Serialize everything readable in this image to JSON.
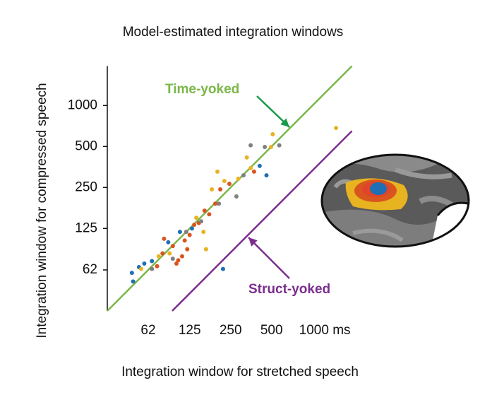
{
  "chart_data": {
    "type": "scatter",
    "title": "Model-estimated integration windows",
    "x_label": "Integration window for stretched speech",
    "y_label": "Integration window for compressed speech",
    "log_scale": true,
    "xlim": [
      31,
      1950
    ],
    "ylim": [
      31,
      1950
    ],
    "xticks": [
      62,
      125,
      250,
      500,
      {
        "value": 1000,
        "label": "1000 ms"
      }
    ],
    "yticks": [
      62,
      125,
      250,
      500,
      1000
    ],
    "series": [
      {
        "color": "#1f6fb5",
        "x": [
          47,
          48,
          53,
          58,
          66,
          87,
          106,
          130,
          220,
          409,
          459
        ],
        "values": [
          59,
          51,
          65,
          69,
          72,
          99,
          118,
          125,
          63,
          360,
          307
        ]
      },
      {
        "color": "#d9541e",
        "x": [
          79,
          81,
          94,
          100,
          110,
          115,
          125,
          135,
          146,
          161,
          174,
          193,
          210,
          245,
          372,
          120,
          72,
          103
        ],
        "values": [
          82,
          105,
          93,
          69,
          78,
          102,
          112,
          133,
          137,
          169,
          159,
          190,
          242,
          266,
          327,
          88,
          66,
          73
        ]
      },
      {
        "color": "#e8b321",
        "x": [
          55,
          74,
          89,
          140,
          165,
          182,
          200,
          225,
          285,
          329,
          351,
          510,
          496,
          1490,
          158
        ],
        "values": [
          63,
          78,
          82,
          150,
          88,
          242,
          327,
          279,
          290,
          415,
          347,
          615,
          496,
          684,
          118
        ]
      },
      {
        "color": "#808080",
        "x": [
          118,
          152,
          205,
          276,
          311,
          351,
          446,
          570,
          94,
          66
        ],
        "values": [
          118,
          141,
          190,
          215,
          307,
          510,
          496,
          510,
          75,
          63
        ]
      }
    ],
    "lines": [
      {
        "name": "Time-yoked",
        "color": "#7ab648",
        "x": [
          31,
          1950
        ],
        "values": [
          31,
          1950
        ]
      },
      {
        "name": "Struct-yoked",
        "color": "#7b2d8e",
        "x": [
          93,
          1950
        ],
        "values": [
          31,
          650
        ]
      }
    ]
  }
}
